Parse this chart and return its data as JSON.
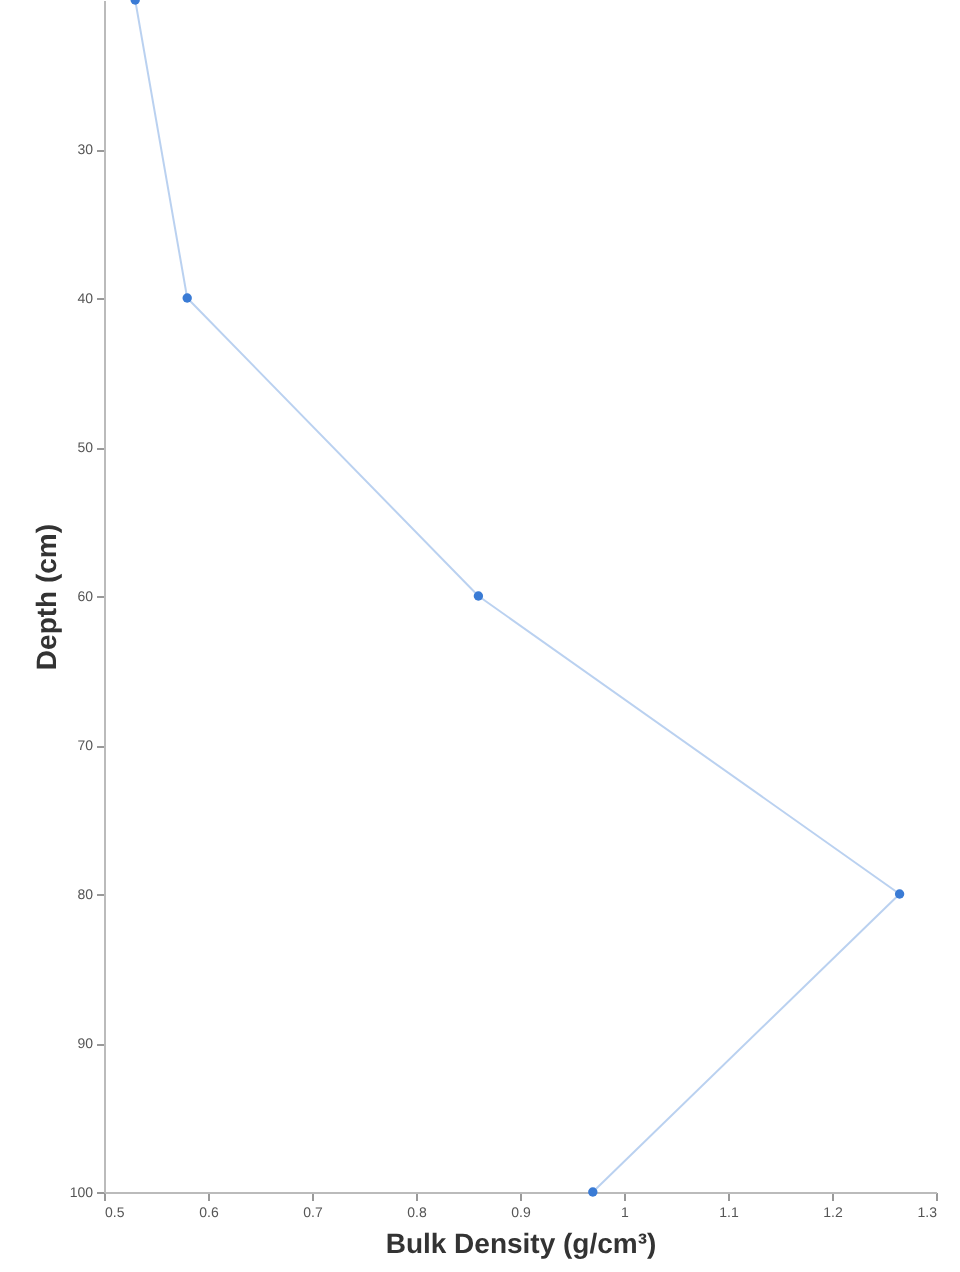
{
  "chart_data": {
    "type": "line",
    "xlabel": "Bulk Density (g/cm³)",
    "ylabel": "Depth (cm)",
    "series": [
      {
        "color": "#3a7bd5",
        "x": [
          0.53,
          0.58,
          0.86,
          1.265,
          0.97
        ],
        "values": [
          20,
          40,
          60,
          80,
          100
        ]
      }
    ],
    "xlim": [
      0.5,
      1.3
    ],
    "xticks": [
      {
        "value": 0.5,
        "label": "0.5"
      },
      0.6,
      0.7,
      0.8,
      0.9,
      1,
      1.1,
      1.2,
      1.3
    ],
    "ylim": [
      100,
      20
    ],
    "yticks": [
      30,
      40,
      50,
      60,
      70,
      80,
      90,
      100
    ],
    "grid": false,
    "marker": "circle",
    "line_style": "solid"
  }
}
